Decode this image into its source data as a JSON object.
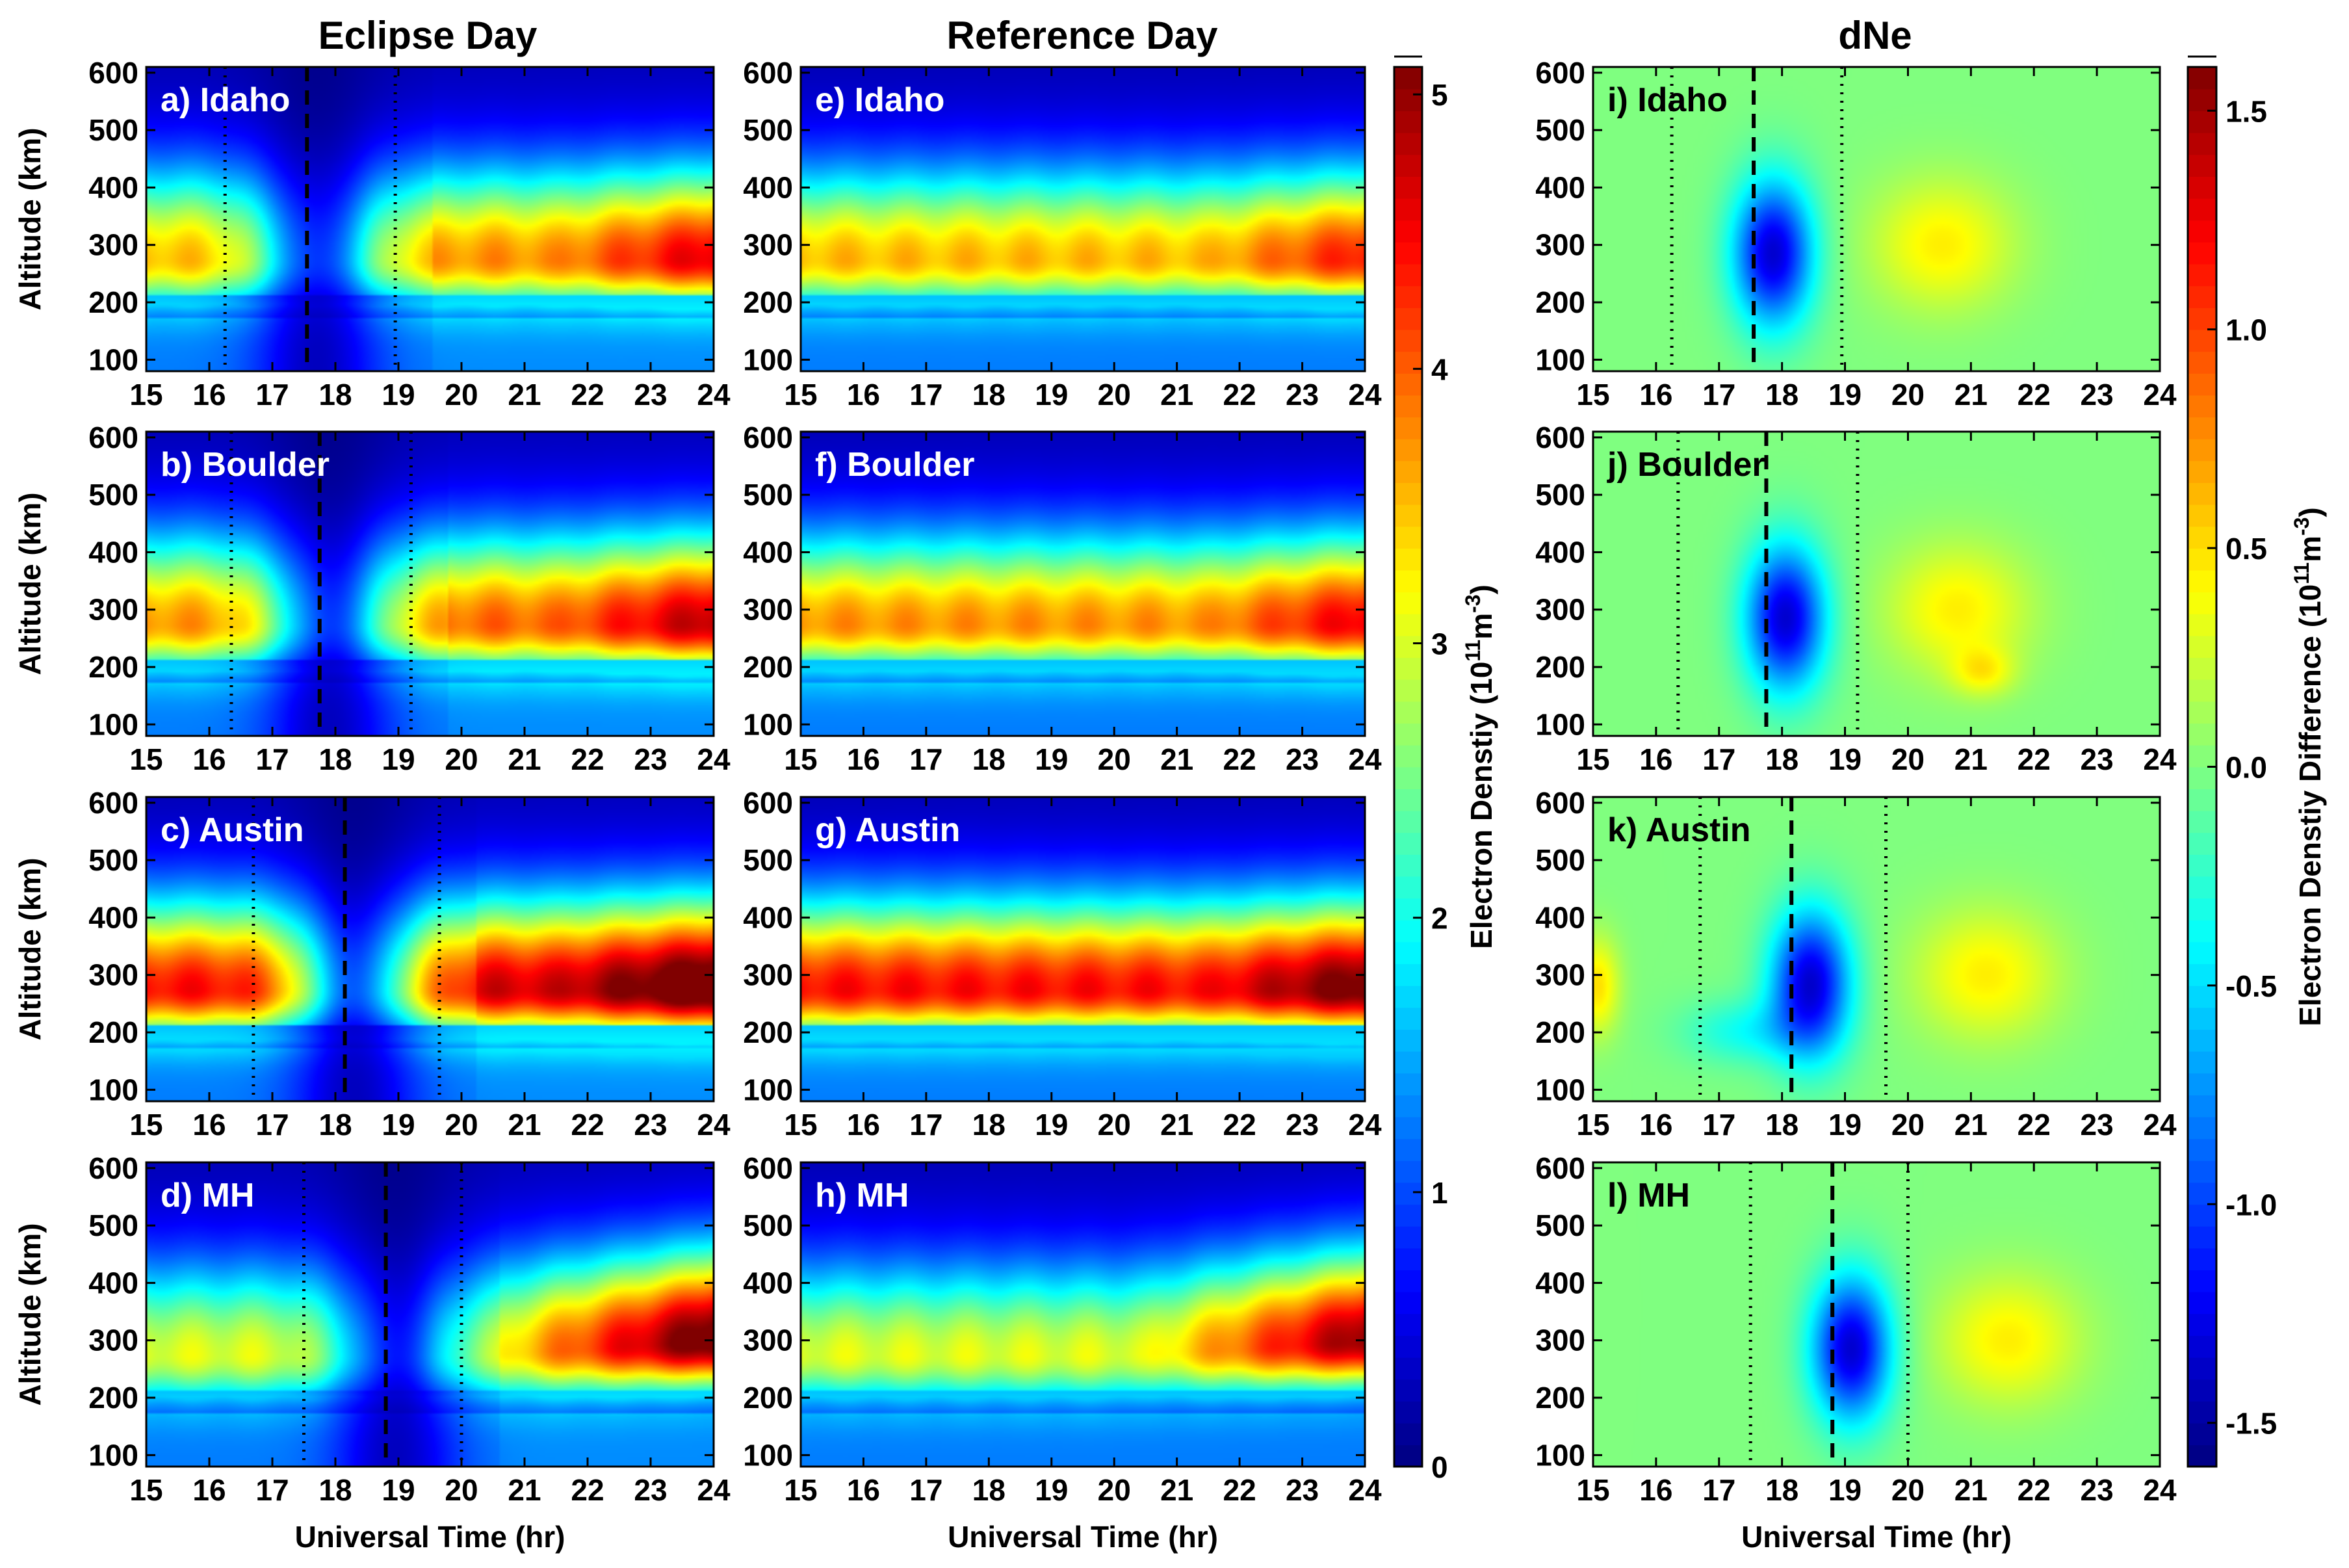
{
  "figure": {
    "column_titles": [
      "Eclipse Day",
      "Reference Day",
      "dNe"
    ],
    "xlabel": "Universal Time (hr)",
    "ylabel": "Altitude (km)",
    "xticks": [
      15,
      16,
      17,
      18,
      19,
      20,
      21,
      22,
      23,
      24
    ],
    "yticks": [
      100,
      200,
      300,
      400,
      500,
      600
    ],
    "colorbar_ne": {
      "label": "Electron Denstiy (10",
      "label_sup": "11",
      "label_mid": "m",
      "label_sup2": "-3",
      "label_end": ")",
      "ticks": [
        "0",
        "1",
        "2",
        "3",
        "4",
        "5"
      ],
      "range": [
        0,
        5.1
      ]
    },
    "colorbar_dne": {
      "label": "Electron Denstiy Difference (10",
      "label_sup": "11",
      "label_mid": "m",
      "label_sup2": "-3",
      "label_end": ")",
      "ticks": [
        "-1.5",
        "-1.0",
        "-0.5",
        "0.0",
        "0.5",
        "1.0",
        "1.5"
      ],
      "range": [
        -1.6,
        1.6
      ]
    }
  },
  "chart_data": [
    {
      "type": "heatmap",
      "id": "a",
      "label": "a) Idaho",
      "location": "Idaho",
      "kind": "eclipse",
      "eclipse_lines": {
        "start": 16.25,
        "max": 17.55,
        "end": 18.95
      },
      "xlim": [
        15,
        24
      ],
      "ylim": [
        80,
        610
      ],
      "units": "10^11 m^-3"
    },
    {
      "type": "heatmap",
      "id": "b",
      "label": "b) Boulder",
      "location": "Boulder",
      "kind": "eclipse",
      "eclipse_lines": {
        "start": 16.35,
        "max": 17.75,
        "end": 19.2
      },
      "xlim": [
        15,
        24
      ],
      "ylim": [
        80,
        610
      ],
      "units": "10^11 m^-3"
    },
    {
      "type": "heatmap",
      "id": "c",
      "label": "c) Austin",
      "location": "Austin",
      "kind": "eclipse",
      "eclipse_lines": {
        "start": 16.7,
        "max": 18.15,
        "end": 19.65
      },
      "xlim": [
        15,
        24
      ],
      "ylim": [
        80,
        610
      ],
      "units": "10^11 m^-3"
    },
    {
      "type": "heatmap",
      "id": "d",
      "label": "d) MH",
      "location": "MH",
      "kind": "eclipse",
      "eclipse_lines": {
        "start": 17.5,
        "max": 18.8,
        "end": 20.0
      },
      "xlim": [
        15,
        24
      ],
      "ylim": [
        80,
        610
      ],
      "units": "10^11 m^-3"
    },
    {
      "type": "heatmap",
      "id": "e",
      "label": "e) Idaho",
      "location": "Idaho",
      "kind": "reference",
      "xlim": [
        15,
        24
      ],
      "ylim": [
        80,
        610
      ],
      "units": "10^11 m^-3"
    },
    {
      "type": "heatmap",
      "id": "f",
      "label": "f) Boulder",
      "location": "Boulder",
      "kind": "reference",
      "xlim": [
        15,
        24
      ],
      "ylim": [
        80,
        610
      ],
      "units": "10^11 m^-3"
    },
    {
      "type": "heatmap",
      "id": "g",
      "label": "g) Austin",
      "location": "Austin",
      "kind": "reference",
      "xlim": [
        15,
        24
      ],
      "ylim": [
        80,
        610
      ],
      "units": "10^11 m^-3"
    },
    {
      "type": "heatmap",
      "id": "h",
      "label": "h) MH",
      "location": "MH",
      "kind": "reference",
      "xlim": [
        15,
        24
      ],
      "ylim": [
        80,
        610
      ],
      "units": "10^11 m^-3"
    },
    {
      "type": "heatmap",
      "id": "i",
      "label": "i) Idaho",
      "location": "Idaho",
      "kind": "difference",
      "eclipse_lines": {
        "start": 16.25,
        "max": 17.55,
        "end": 18.95
      },
      "xlim": [
        15,
        24
      ],
      "ylim": [
        80,
        610
      ],
      "units": "10^11 m^-3"
    },
    {
      "type": "heatmap",
      "id": "j",
      "label": "j) Boulder",
      "location": "Boulder",
      "kind": "difference",
      "eclipse_lines": {
        "start": 16.35,
        "max": 17.75,
        "end": 19.2
      },
      "xlim": [
        15,
        24
      ],
      "ylim": [
        80,
        610
      ],
      "units": "10^11 m^-3"
    },
    {
      "type": "heatmap",
      "id": "k",
      "label": "k) Austin",
      "location": "Austin",
      "kind": "difference",
      "eclipse_lines": {
        "start": 16.7,
        "max": 18.15,
        "end": 19.65
      },
      "xlim": [
        15,
        24
      ],
      "ylim": [
        80,
        610
      ],
      "units": "10^11 m^-3"
    },
    {
      "type": "heatmap",
      "id": "l",
      "label": "l) MH",
      "location": "MH",
      "kind": "difference",
      "eclipse_lines": {
        "start": 17.5,
        "max": 18.8,
        "end": 20.0
      },
      "xlim": [
        15,
        24
      ],
      "ylim": [
        80,
        610
      ],
      "units": "10^11 m^-3"
    }
  ]
}
